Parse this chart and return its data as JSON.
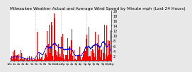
{
  "title": "Milwaukee Weather Actual and Average Wind Speed by Minute mph (Last 24 Hours)",
  "title_fontsize": 4.2,
  "background_color": "#e8e8e8",
  "plot_bg_color": "#ffffff",
  "bar_color": "#ff0000",
  "line_color": "#0000ff",
  "grid_color": "#aaaaaa",
  "ymin": 0,
  "ymax": 20,
  "yticks": [
    2,
    4,
    6,
    8,
    10,
    12,
    14,
    16,
    18,
    20
  ],
  "ytick_labels": [
    "2",
    "4",
    "6",
    "8",
    "10",
    "12",
    "14",
    "16",
    "18",
    "20"
  ],
  "ytick_fontsize": 3.5,
  "xtick_fontsize": 3.0,
  "n_points": 1440,
  "bar_width": 1.0,
  "xtick_labels": [
    "12a",
    "1a",
    "2a",
    "3a",
    "4a",
    "5a",
    "6a",
    "7a",
    "8a",
    "9a",
    "10a",
    "11a",
    "12p",
    "1p",
    "2p",
    "3p",
    "4p",
    "5p",
    "6p",
    "7p",
    "8p",
    "9p",
    "10p",
    "11p"
  ],
  "n_xticks": 24,
  "n_grid_lines": 3
}
